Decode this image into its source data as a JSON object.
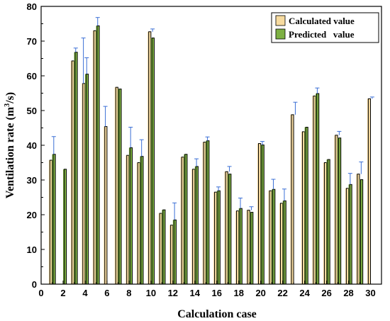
{
  "chart_data": {
    "type": "bar",
    "xlabel": "Calculation case",
    "ylabel": "Ventilation rate (m",
    "ylabel_sup": "3",
    "ylabel_end": "/s)",
    "xlim": [
      0,
      31
    ],
    "ylim": [
      0,
      80
    ],
    "xticks": [
      0,
      2,
      4,
      6,
      8,
      10,
      12,
      14,
      16,
      18,
      20,
      22,
      24,
      26,
      28,
      30
    ],
    "yticks": [
      0,
      10,
      20,
      30,
      40,
      50,
      60,
      70,
      80
    ],
    "legend_position": "top-right",
    "series": [
      {
        "name": "Calculated value",
        "color": "#f7dba0",
        "x": [
          1,
          3,
          4,
          5,
          6,
          7,
          8,
          9,
          10,
          11,
          12,
          13,
          14,
          15,
          16,
          17,
          18,
          19,
          20,
          21,
          22,
          23,
          24,
          25,
          26,
          27,
          28,
          29,
          30
        ],
        "values": [
          35.7,
          64.3,
          57.8,
          73.0,
          45.4,
          56.7,
          37.1,
          35.0,
          72.7,
          20.4,
          17.0,
          36.6,
          33.1,
          40.9,
          26.5,
          32.4,
          21.1,
          21.3,
          40.5,
          26.9,
          23.3,
          48.8,
          43.9,
          54.2,
          35.0,
          42.9,
          27.6,
          31.7,
          53.4
        ]
      },
      {
        "name": "Predicted   value",
        "color": "#7db043",
        "x": [
          1,
          2,
          3,
          4,
          5,
          7,
          8,
          9,
          10,
          11,
          12,
          13,
          14,
          15,
          16,
          17,
          18,
          19,
          20,
          21,
          22,
          24,
          25,
          26,
          27,
          28,
          29
        ],
        "values": [
          37.4,
          33.1,
          66.8,
          60.5,
          74.4,
          56.2,
          39.3,
          36.8,
          70.9,
          21.4,
          18.5,
          37.4,
          33.9,
          41.3,
          26.9,
          31.7,
          21.8,
          20.7,
          40.1,
          27.3,
          24.0,
          45.2,
          54.9,
          35.9,
          42.1,
          28.7,
          30.1
        ]
      }
    ],
    "error_bars": [
      {
        "x": 1.15,
        "bottom": 37.4,
        "top": 42.5
      },
      {
        "x": 3.15,
        "bottom": 66.8,
        "top": 68.0
      },
      {
        "x": 3.85,
        "bottom": 57.8,
        "top": 70.9
      },
      {
        "x": 4.15,
        "bottom": 60.5,
        "top": 65.2
      },
      {
        "x": 5.15,
        "bottom": 74.4,
        "top": 76.8
      },
      {
        "x": 5.85,
        "bottom": 45.4,
        "top": 51.2
      },
      {
        "x": 8.15,
        "bottom": 39.3,
        "top": 45.2
      },
      {
        "x": 9.15,
        "bottom": 36.8,
        "top": 41.6
      },
      {
        "x": 10.15,
        "bottom": 72.7,
        "top": 73.5
      },
      {
        "x": 12.15,
        "bottom": 18.5,
        "top": 23.4
      },
      {
        "x": 14.15,
        "bottom": 33.9,
        "top": 36.1
      },
      {
        "x": 15.15,
        "bottom": 41.3,
        "top": 42.4
      },
      {
        "x": 16.15,
        "bottom": 26.9,
        "top": 28.0
      },
      {
        "x": 17.15,
        "bottom": 32.4,
        "top": 33.9
      },
      {
        "x": 18.15,
        "bottom": 21.8,
        "top": 24.8
      },
      {
        "x": 19.15,
        "bottom": 21.3,
        "top": 22.3
      },
      {
        "x": 20.15,
        "bottom": 40.1,
        "top": 41.1
      },
      {
        "x": 21.15,
        "bottom": 27.3,
        "top": 30.2
      },
      {
        "x": 22.15,
        "bottom": 24.0,
        "top": 27.4
      },
      {
        "x": 23.15,
        "bottom": 48.8,
        "top": 52.4
      },
      {
        "x": 25.15,
        "bottom": 54.9,
        "top": 56.5
      },
      {
        "x": 27.15,
        "bottom": 42.9,
        "top": 44.0
      },
      {
        "x": 28.15,
        "bottom": 28.7,
        "top": 31.9
      },
      {
        "x": 29.15,
        "bottom": 31.7,
        "top": 35.2
      },
      {
        "x": 30.15,
        "bottom": 53.4,
        "top": 53.9
      }
    ],
    "error_bar_color": "#3b6fd6"
  }
}
